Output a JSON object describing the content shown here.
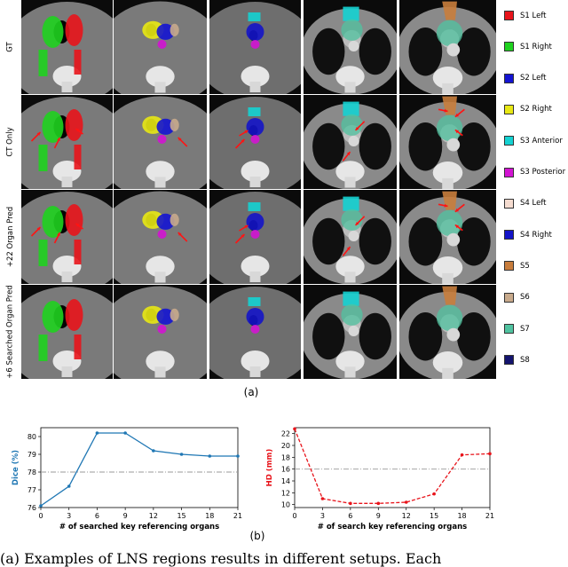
{
  "figure": {
    "row_labels": [
      "GT",
      "CT Only",
      "+22 Organ Pred",
      "+6 Searched Organ Pred"
    ],
    "caption_a": "(a)",
    "caption_b": "(b)"
  },
  "legend": {
    "items": [
      {
        "label": "S1 Left",
        "color": "#e8141b"
      },
      {
        "label": "S1 Right",
        "color": "#1fd21f"
      },
      {
        "label": "S2 Left",
        "color": "#1414d2"
      },
      {
        "label": "S2 Right",
        "color": "#e8e814"
      },
      {
        "label": "S3 Anterior",
        "color": "#14d2d2"
      },
      {
        "label": "S3 Posterior",
        "color": "#d214d2"
      },
      {
        "label": "S4 Left",
        "color": "#f5dcd0"
      },
      {
        "label": "S4 Right",
        "color": "#1414c8"
      },
      {
        "label": "S5",
        "color": "#c87d3c"
      },
      {
        "label": "S6",
        "color": "#c8aa8c"
      },
      {
        "label": "S7",
        "color": "#50c3a0"
      },
      {
        "label": "S8",
        "color": "#14146e"
      }
    ]
  },
  "chart_data": [
    {
      "type": "line",
      "x": [
        0,
        3,
        6,
        9,
        12,
        15,
        18,
        21
      ],
      "y": [
        76.1,
        77.2,
        80.2,
        80.2,
        79.2,
        79.0,
        78.9,
        78.9
      ],
      "xlabel": "# of searched key referencing organs",
      "ylabel": "Dice (%)",
      "ylim": [
        76,
        80.5
      ],
      "yticks": [
        76,
        77,
        78,
        79,
        80
      ],
      "xticks": [
        0,
        3,
        6,
        9,
        12,
        15,
        18,
        21
      ],
      "baseline": 78.0,
      "color": "#1f77b4",
      "grid": false
    },
    {
      "type": "line",
      "x": [
        0,
        3,
        6,
        9,
        12,
        15,
        18,
        21
      ],
      "y": [
        22.8,
        11.0,
        10.2,
        10.2,
        10.4,
        11.8,
        18.4,
        18.6
      ],
      "xlabel": "# of search key referencing organs",
      "ylabel": "HD (mm)",
      "ylim": [
        9.5,
        23.0
      ],
      "yticks": [
        10,
        12,
        14,
        16,
        18,
        20,
        22
      ],
      "xticks": [
        0,
        3,
        6,
        9,
        12,
        15,
        18,
        21
      ],
      "baseline": 16.0,
      "color": "#e8141b",
      "grid": false
    }
  ],
  "bottom_text": "(a) Examples of LNS regions results in different setups. Each"
}
